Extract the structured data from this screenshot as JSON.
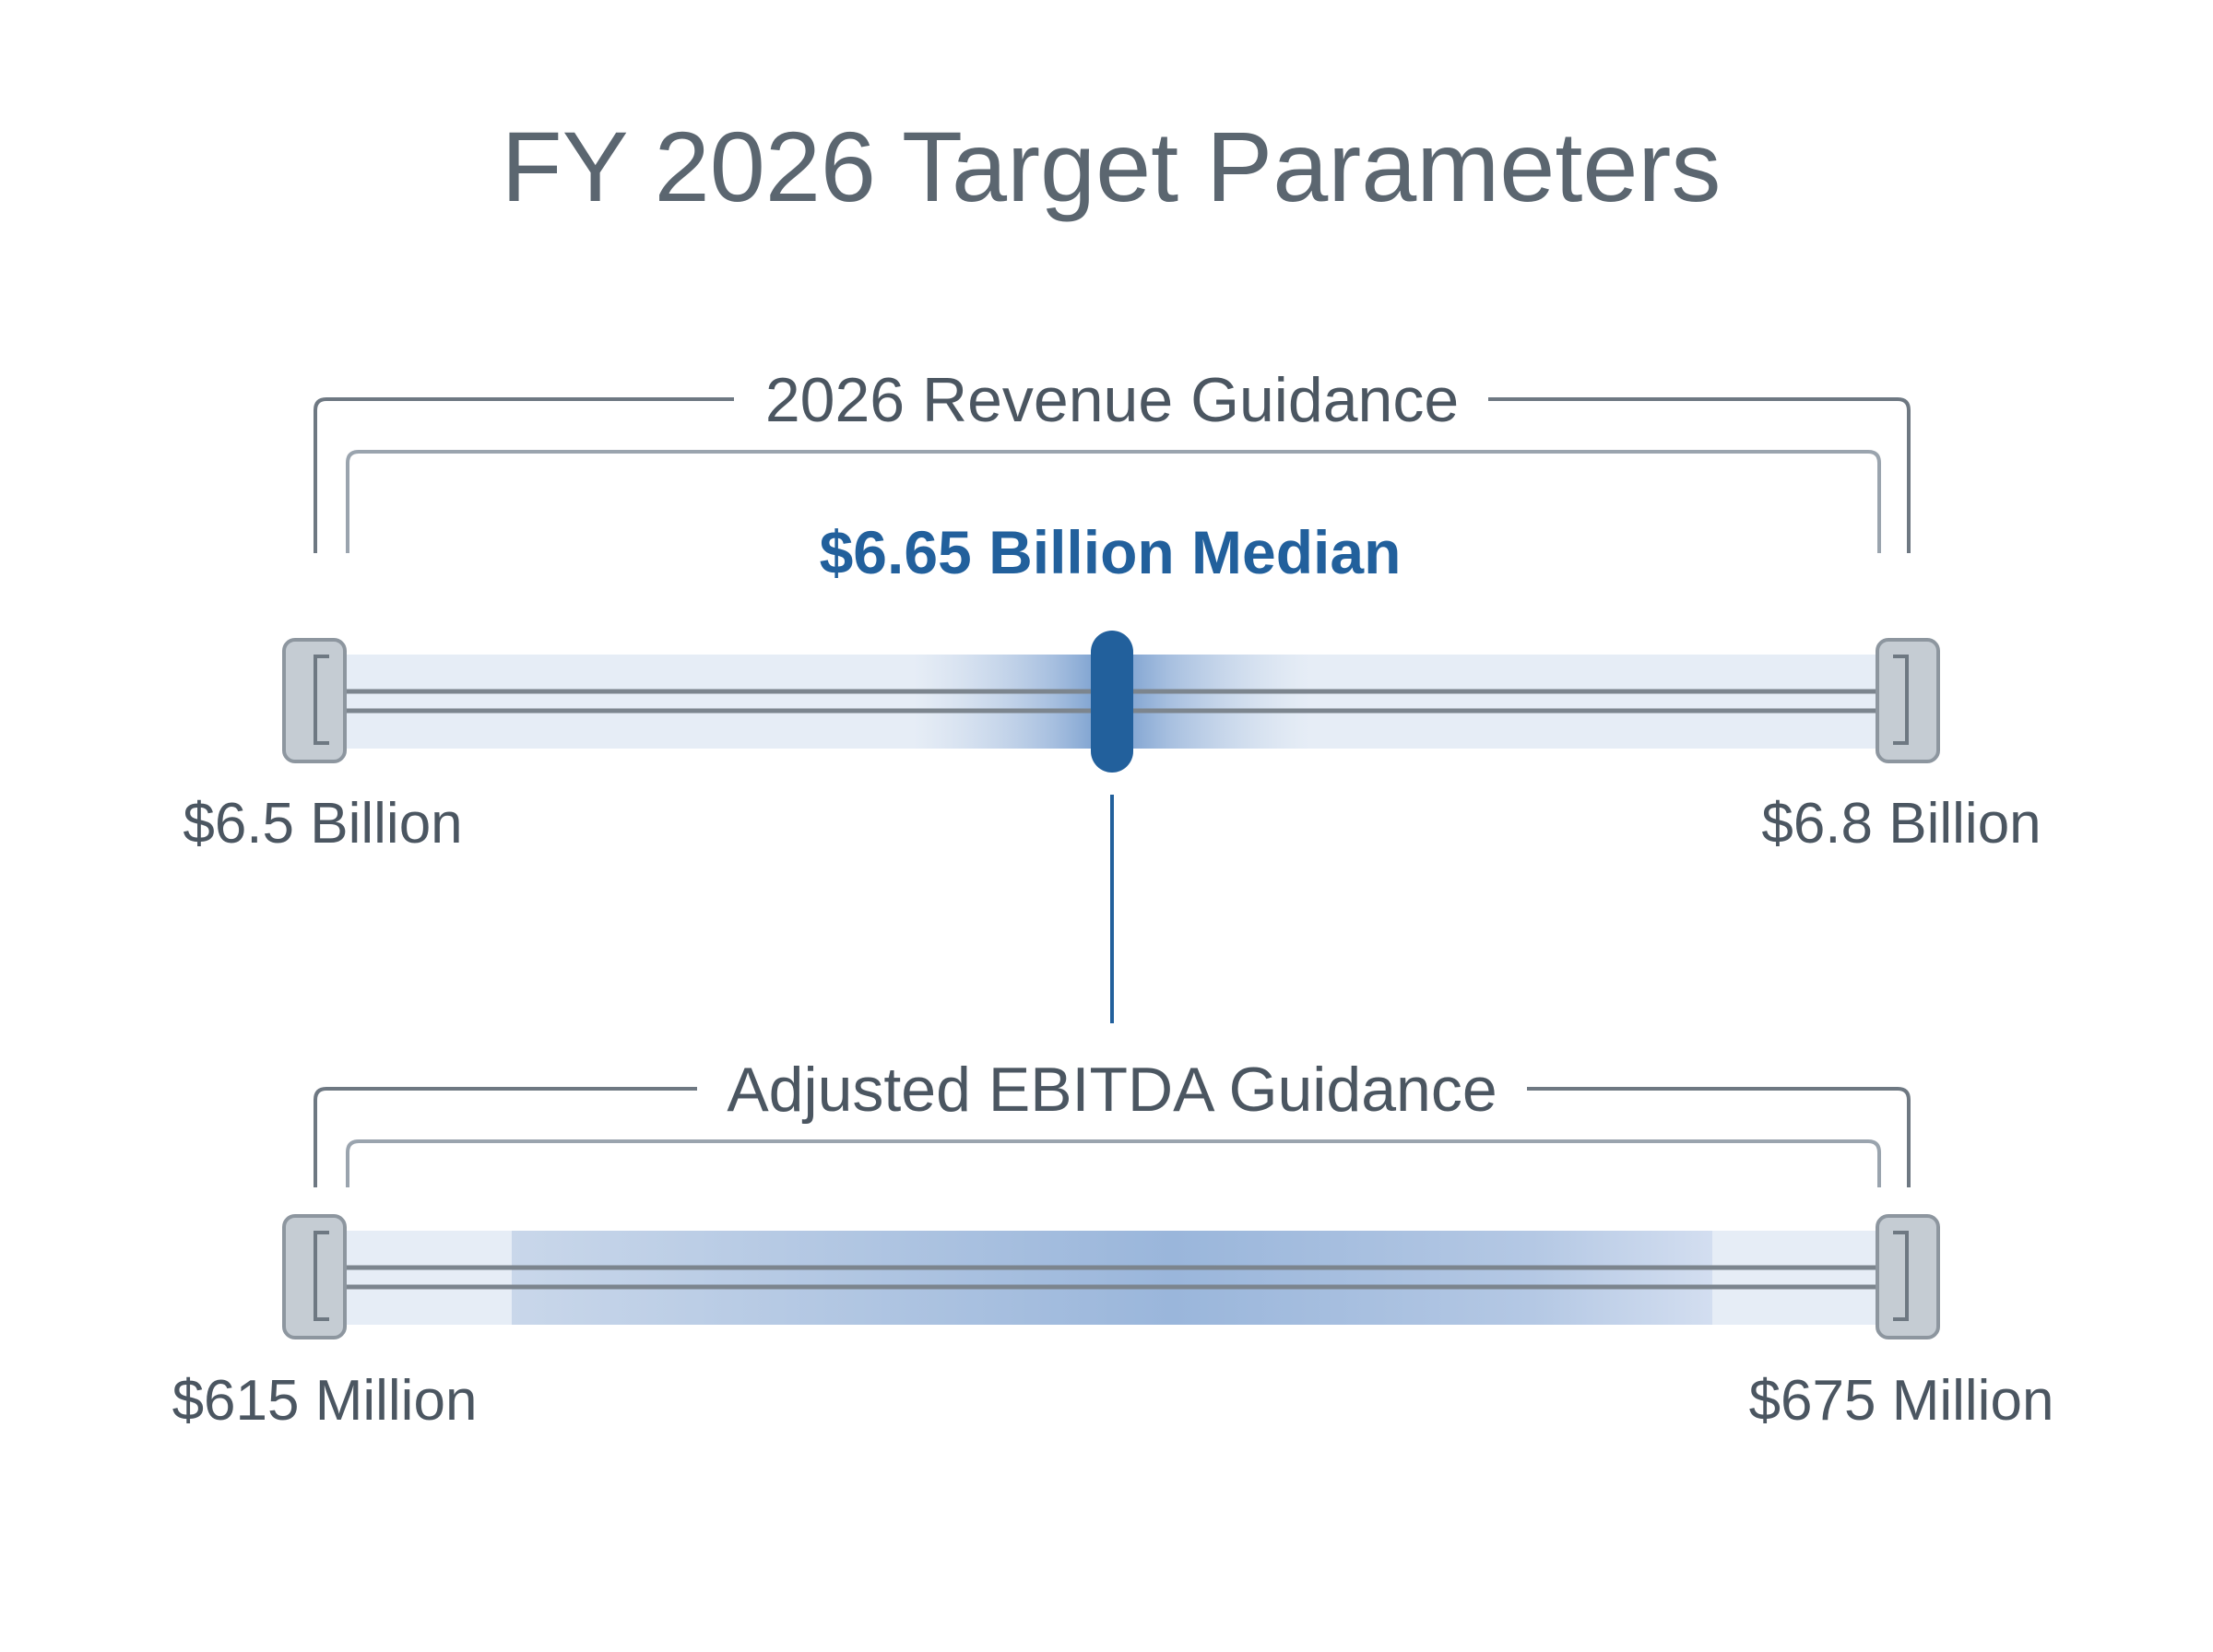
{
  "title": "FY 2026 Target Parameters",
  "colors": {
    "accent": "#22609c",
    "text": "#4b5661",
    "title": "#5b6670",
    "band_light": "#e6edf6",
    "band_mid": "#c3d3e8",
    "band_dark": "#6f98cb"
  },
  "revenue": {
    "label": "2026 Revenue Guidance",
    "median_label": "$6.65 Billion Median",
    "low_label": "$6.5 Billion",
    "high_label": "$6.8 Billion",
    "range_billions": [
      6.5,
      6.8
    ],
    "median_billions": 6.65
  },
  "ebitda": {
    "label": "Adjusted EBITDA Guidance",
    "low_label": "$615 Million",
    "high_label": "$675 Million",
    "range_millions": [
      615,
      675
    ]
  }
}
